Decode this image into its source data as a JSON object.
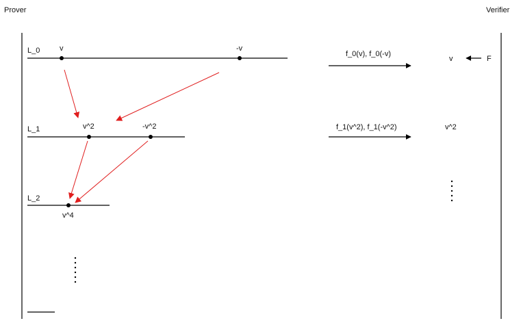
{
  "participants": {
    "prover": "Prover",
    "verifier": "Verifier"
  },
  "layers": [
    {
      "label": "L_0",
      "points": [
        "v",
        "-v"
      ]
    },
    {
      "label": "L_1",
      "points": [
        "v^2",
        "-v^2"
      ]
    },
    {
      "label": "L_2",
      "points": [
        "v^4"
      ]
    }
  ],
  "messages": [
    {
      "label": "f_0(v), f_0(-v)"
    },
    {
      "label": "f_1(v^2), f_1(-v^2)"
    }
  ],
  "verifier_side": {
    "values": [
      "v",
      "v^2"
    ],
    "source_label": "F"
  },
  "colors": {
    "fold_arrow": "#e01e1e",
    "line": "#000000"
  }
}
